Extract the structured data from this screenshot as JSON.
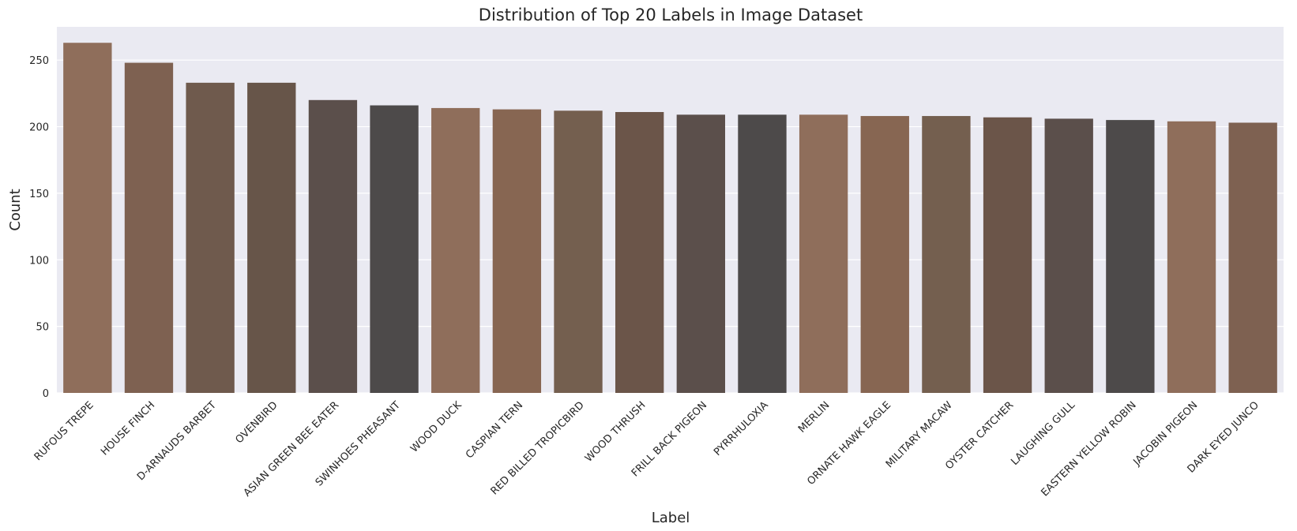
{
  "chart_data": {
    "type": "bar",
    "title": "Distribution of Top 20 Labels in Image Dataset",
    "xlabel": "Label",
    "ylabel": "Count",
    "ylim": [
      0,
      275
    ],
    "yticks": [
      0,
      50,
      100,
      150,
      200,
      250
    ],
    "grid": true,
    "legend": "none",
    "background": "#eaeaf2",
    "grid_color": "#ffffff",
    "categories": [
      "RUFOUS TREPE",
      "HOUSE FINCH",
      "D-ARNAUDS BARBET",
      "OVENBIRD",
      "ASIAN GREEN BEE EATER",
      "SWINHOES PHEASANT",
      "WOOD DUCK",
      "CASPIAN TERN",
      "RED BILLED TROPICBIRD",
      "WOOD THRUSH",
      "FRILL BACK PIGEON",
      "PYRRHULOXIA",
      "MERLIN",
      "ORNATE HAWK EAGLE",
      "MILITARY MACAW",
      "OYSTER CATCHER",
      "LAUGHING GULL",
      "EASTERN YELLOW ROBIN",
      "JACOBIN PIGEON",
      "DARK EYED JUNCO"
    ],
    "values": [
      263,
      248,
      233,
      233,
      220,
      216,
      214,
      213,
      212,
      211,
      209,
      209,
      209,
      208,
      208,
      207,
      206,
      205,
      204,
      203
    ],
    "colors": [
      "#8f6e5b",
      "#7e6151",
      "#6f5a4d",
      "#675549",
      "#5b4f4b",
      "#4d4a4a",
      "#8f6e5b",
      "#876652",
      "#745f4f",
      "#6b5549",
      "#5b4f4b",
      "#4d4a4a",
      "#8f6e5b",
      "#876652",
      "#745f4f",
      "#6b5549",
      "#5b4f4b",
      "#4d4a4a",
      "#8f6e5b",
      "#7e6151"
    ]
  }
}
